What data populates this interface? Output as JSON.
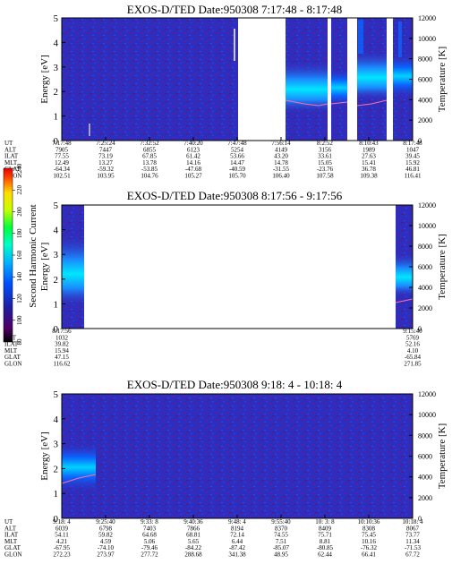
{
  "colorbar": {
    "label": "Second Harmonic Current",
    "ticks": [
      "80",
      "100",
      "120",
      "140",
      "160",
      "180",
      "200",
      "220",
      "240"
    ]
  },
  "info_row_labels": [
    "UT",
    "ALT",
    "ILAT",
    "MLT",
    "GLAT",
    "GLON"
  ],
  "chart_data": [
    {
      "type": "heatmap",
      "title": "EXOS-D/TED   Date:950308   7:17:48 - 8:17:48",
      "ylabel": "Energy [eV]",
      "y2label": "Temperature [K]",
      "ylim": [
        0,
        5
      ],
      "y2lim": [
        0,
        12000
      ],
      "yticks": [
        "0",
        "1",
        "2",
        "3",
        "4",
        "5"
      ],
      "y2ticks": [
        "0",
        "2000",
        "4000",
        "6000",
        "8000",
        "10000",
        "12000"
      ],
      "data_gaps": [
        "7:47:48 - 7:56:14",
        "8:04:50 - 8:05:40",
        "8:08:10 - 8:09:10",
        "8:14:40 - 8:15:20"
      ],
      "columns": [
        {
          "UT": "7:17:48",
          "ALT": "7905",
          "ILAT": "77.55",
          "MLT": "12.49",
          "GLAT": "-64.34",
          "GLON": "102.51"
        },
        {
          "UT": "7:25:24",
          "ALT": "7447",
          "ILAT": "73.19",
          "MLT": "13.27",
          "GLAT": "-59.32",
          "GLON": "103.95"
        },
        {
          "UT": "7:32:52",
          "ALT": "6855",
          "ILAT": "67.85",
          "MLT": "13.78",
          "GLAT": "-53.85",
          "GLON": "104.76"
        },
        {
          "UT": "7:40:20",
          "ALT": "6123",
          "ILAT": "61.42",
          "MLT": "14.16",
          "GLAT": "-47.68",
          "GLON": "105.27"
        },
        {
          "UT": "7:47:48",
          "ALT": "5254",
          "ILAT": "53.66",
          "MLT": "14.47",
          "GLAT": "-40.59",
          "GLON": "105.70"
        },
        {
          "UT": "7:56:14",
          "ALT": "4149",
          "ILAT": "43.20",
          "MLT": "14.78",
          "GLAT": "-31.55",
          "GLON": "106.40"
        },
        {
          "UT": "8:2:52",
          "ALT": "3156",
          "ILAT": "33.61",
          "MLT": "15.05",
          "GLAT": "-23.76",
          "GLON": "107.58"
        },
        {
          "UT": "8:10:43",
          "ALT": "1989",
          "ILAT": "27.63",
          "MLT": "15.41",
          "GLAT": "36.78",
          "GLON": "109.38"
        },
        {
          "UT": "8:17:48",
          "ALT": "1047",
          "ILAT": "39.45",
          "MLT": "15.92",
          "GLAT": "46.81",
          "GLON": "116.41"
        }
      ]
    },
    {
      "type": "heatmap",
      "title": "EXOS-D/TED   Date:950308   8:17:56 - 9:17:56",
      "ylabel": "Energy [eV]",
      "y2label": "Temperature [K]",
      "ylim": [
        0,
        5
      ],
      "y2lim": [
        0,
        12000
      ],
      "yticks": [
        "0",
        "1",
        "2",
        "3",
        "4",
        "5"
      ],
      "y2ticks": [
        "0",
        "2000",
        "4000",
        "6000",
        "8000",
        "10000",
        "12000"
      ],
      "data_gaps": [
        "8:24:00 - 9:15:20"
      ],
      "columns": [
        {
          "UT": "8:17:56",
          "ALT": "1032",
          "ILAT": "39.82",
          "MLT": "15.94",
          "GLAT": "47.15",
          "GLON": "116.62"
        },
        {
          "UT": "9:15:40",
          "ALT": "5769",
          "ILAT": "52.16",
          "MLT": "4.10",
          "GLAT": "-65.84",
          "GLON": "271.85"
        }
      ]
    },
    {
      "type": "heatmap",
      "title": "EXOS-D/TED   Date:950308   9:18: 4 - 10:18: 4",
      "ylabel": "Energy [eV]",
      "y2label": "Temperature [K]",
      "ylim": [
        0,
        5
      ],
      "y2lim": [
        0,
        12000
      ],
      "yticks": [
        "0",
        "1",
        "2",
        "3",
        "4",
        "5"
      ],
      "y2ticks": [
        "0",
        "2000",
        "4000",
        "6000",
        "8000",
        "10000",
        "12000"
      ],
      "data_gaps": [],
      "columns": [
        {
          "UT": "9:18: 4",
          "ALT": "6039",
          "ILAT": "54.11",
          "MLT": "4.21",
          "GLAT": "-67.95",
          "GLON": "272.23"
        },
        {
          "UT": "9:25:40",
          "ALT": "6798",
          "ILAT": "59.82",
          "MLT": "4.59",
          "GLAT": "-74.10",
          "GLON": "273.97"
        },
        {
          "UT": "9:33: 8",
          "ALT": "7403",
          "ILAT": "64.68",
          "MLT": "5.06",
          "GLAT": "-79.46",
          "GLON": "277.72"
        },
        {
          "UT": "9:40:36",
          "ALT": "7866",
          "ILAT": "68.81",
          "MLT": "5.65",
          "GLAT": "-84.22",
          "GLON": "288.68"
        },
        {
          "UT": "9:48: 4",
          "ALT": "8194",
          "ILAT": "72.14",
          "MLT": "6.44",
          "GLAT": "-87.42",
          "GLON": "341.38"
        },
        {
          "UT": "9:55:40",
          "ALT": "8370",
          "ILAT": "74.55",
          "MLT": "7.51",
          "GLAT": "-85.07",
          "GLON": "48.95"
        },
        {
          "UT": "10: 3: 8",
          "ALT": "8409",
          "ILAT": "75.71",
          "MLT": "8.81",
          "GLAT": "-80.85",
          "GLON": "62.44"
        },
        {
          "UT": "10:10:36",
          "ALT": "8308",
          "ILAT": "75.45",
          "MLT": "10.16",
          "GLAT": "-76.32",
          "GLON": "66.41"
        },
        {
          "UT": "10:18: 4",
          "ALT": "8067",
          "ILAT": "73.77",
          "MLT": "11.34",
          "GLAT": "-71.53",
          "GLON": "67.72"
        }
      ]
    }
  ],
  "colors": {
    "background_level": "#3232c8",
    "colorbar": [
      "#000000",
      "#500064",
      "#1e1ea0",
      "#0050ff",
      "#00b4ff",
      "#00ffc8",
      "#00ff3c",
      "#c8ff00",
      "#ffdc00",
      "#ff5000",
      "#e60000"
    ]
  }
}
